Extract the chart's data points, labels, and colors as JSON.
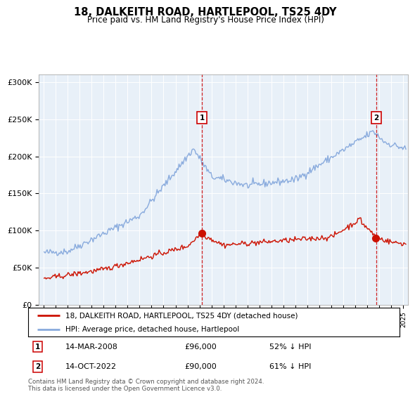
{
  "title": "18, DALKEITH ROAD, HARTLEPOOL, TS25 4DY",
  "subtitle": "Price paid vs. HM Land Registry's House Price Index (HPI)",
  "bg_color": "#e8f0f8",
  "hpi_color": "#88aadd",
  "price_color": "#cc1100",
  "legend_line1": "18, DALKEITH ROAD, HARTLEPOOL, TS25 4DY (detached house)",
  "legend_line2": "HPI: Average price, detached house, Hartlepool",
  "footer": "Contains HM Land Registry data © Crown copyright and database right 2024.\nThis data is licensed under the Open Government Licence v3.0.",
  "ylim": [
    0,
    310000
  ],
  "yticks": [
    0,
    50000,
    100000,
    150000,
    200000,
    250000,
    300000
  ],
  "ytick_labels": [
    "£0",
    "£50K",
    "£100K",
    "£150K",
    "£200K",
    "£250K",
    "£300K"
  ],
  "marker1_x": 2008.21,
  "marker2_x": 2022.75,
  "marker1_price": 96000,
  "marker2_price": 90000,
  "marker1_date": "14-MAR-2008",
  "marker2_date": "14-OCT-2022",
  "marker1_pct": "52% ↓ HPI",
  "marker2_pct": "61% ↓ HPI"
}
